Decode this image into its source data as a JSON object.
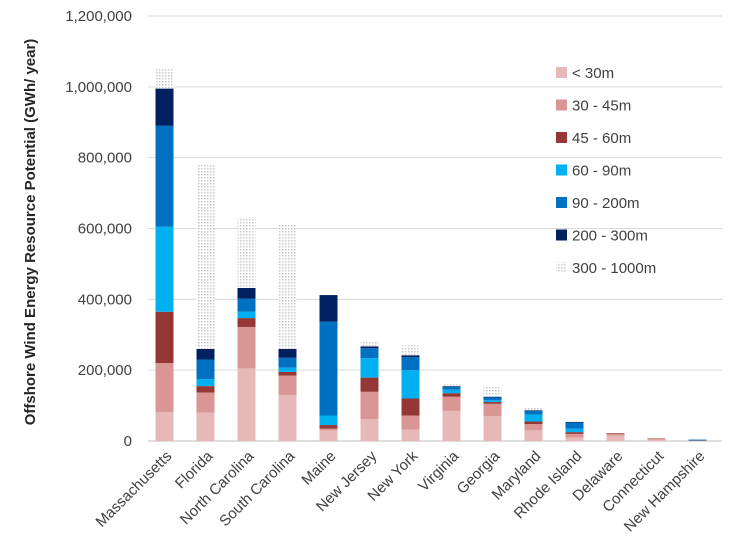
{
  "chart_data": {
    "type": "bar",
    "stacked": true,
    "title": "",
    "xlabel": "",
    "ylabel": "Offshore Wind Energy Resource Potential (GWh/ year)",
    "ylim": [
      0,
      1200000
    ],
    "yticks": [
      0,
      200000,
      400000,
      600000,
      800000,
      1000000,
      1200000
    ],
    "ytick_labels": [
      "0",
      "200,000",
      "400,000",
      "600,000",
      "800,000",
      "1,000,000",
      "1,200,000"
    ],
    "grid": true,
    "legend_position": "top-right",
    "categories": [
      "Massachusetts",
      "Florida",
      "North Carolina",
      "South Carolina",
      "Maine",
      "New Jersey",
      "New York",
      "Virginia",
      "Georgia",
      "Maryland",
      "Rhode Island",
      "Delaware",
      "Connecticut",
      "New Hampshire"
    ],
    "series": [
      {
        "name": "< 30m",
        "color": "#e6b9b8",
        "values": [
          82000,
          80000,
          205000,
          130000,
          30000,
          62000,
          32000,
          85000,
          70000,
          30000,
          10000,
          15000,
          4000,
          1000
        ]
      },
      {
        "name": "30 - 45m",
        "color": "#d99694",
        "values": [
          138000,
          57000,
          117000,
          55000,
          5000,
          77000,
          40000,
          40000,
          35000,
          18000,
          10000,
          5000,
          2000,
          500
        ]
      },
      {
        "name": "45 - 60m",
        "color": "#953735",
        "values": [
          145000,
          18000,
          25000,
          10000,
          10000,
          40000,
          48000,
          10000,
          5000,
          7000,
          5000,
          2000,
          1000,
          500
        ]
      },
      {
        "name": "60 - 90m",
        "color": "#00b0f0",
        "values": [
          240000,
          20000,
          18000,
          12000,
          27000,
          55000,
          80000,
          10000,
          5000,
          20000,
          10000,
          0,
          0,
          1000
        ]
      },
      {
        "name": "90 - 200m",
        "color": "#0070c0",
        "values": [
          285000,
          55000,
          37000,
          28000,
          265000,
          28000,
          37000,
          8000,
          8000,
          10000,
          17000,
          0,
          0,
          1000
        ]
      },
      {
        "name": "200 - 300m",
        "color": "#002060",
        "values": [
          105000,
          30000,
          30000,
          25000,
          75000,
          5000,
          5000,
          2000,
          2000,
          2000,
          2000,
          0,
          0,
          0
        ]
      },
      {
        "name": "300 - 1000m",
        "color": "#f2f2f2",
        "values": [
          60000,
          520000,
          200000,
          350000,
          0,
          15000,
          28000,
          5000,
          30000,
          10000,
          2000,
          0,
          0,
          0
        ]
      }
    ]
  }
}
